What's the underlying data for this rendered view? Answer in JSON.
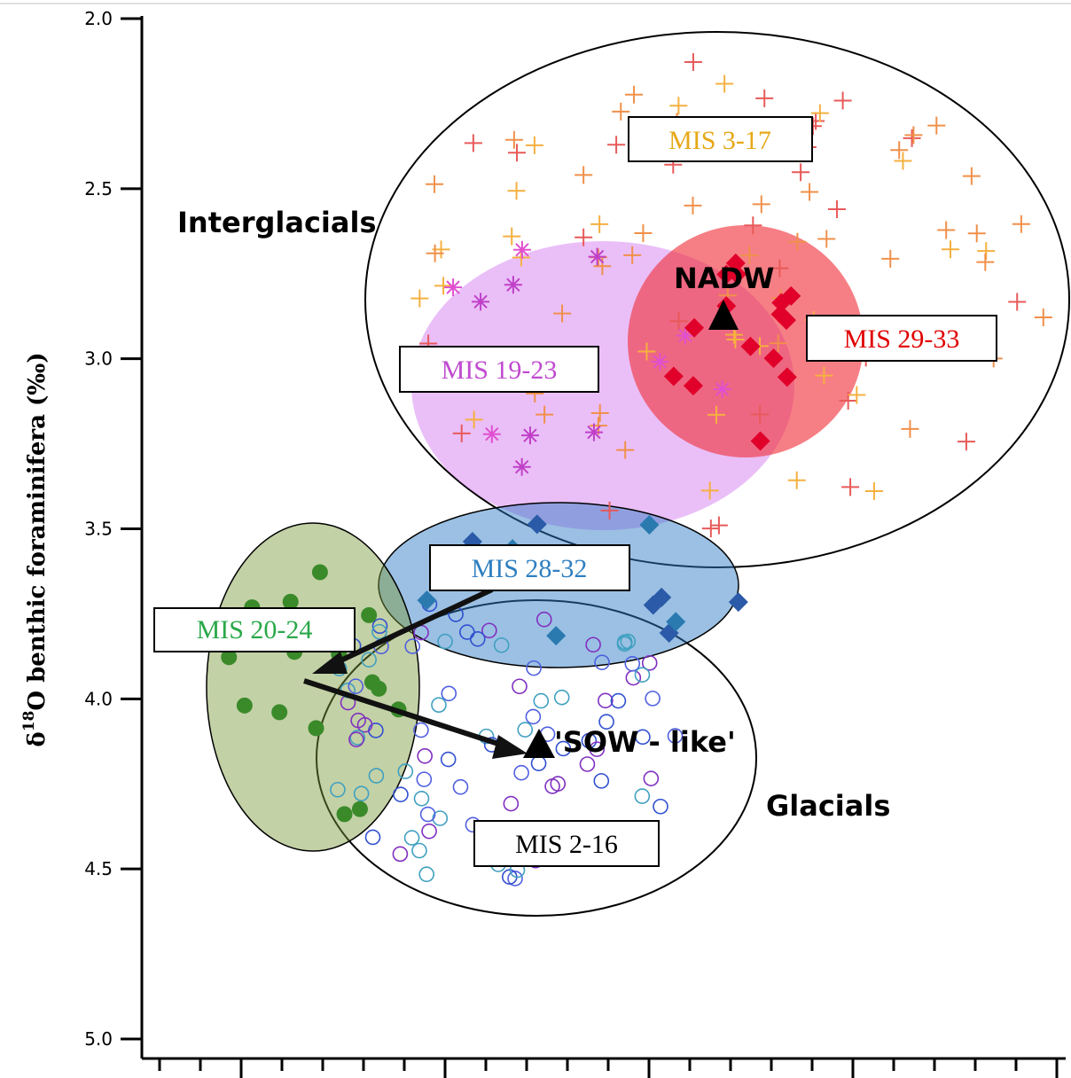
{
  "chart_data": {
    "type": "scatter",
    "ylabel_parts": [
      "δ",
      "18",
      "O benthic foraminifera (‰)"
    ],
    "ylim": [
      2.0,
      5.0
    ],
    "y_inverted": true,
    "y_ticks": [
      "2.0",
      "2.5",
      "3.0",
      "3.5",
      "4.0",
      "4.5",
      "5.0"
    ],
    "y_tick_values": [
      2.0,
      2.5,
      3.0,
      3.5,
      4.0,
      4.5,
      5.0
    ],
    "x_tick_labels_visible": false,
    "group_labels": {
      "interglacials": "Interglacials",
      "glacials": "Glacials"
    },
    "water_masses": [
      {
        "label": "NADW",
        "y": 2.88
      },
      {
        "label": "'SOW - like'",
        "y": 4.13
      }
    ],
    "clusters": [
      {
        "label": "MIS 3-17",
        "label_color": "#e6a817",
        "marker": "plus",
        "colors": [
          "#f0904a",
          "#f5b040",
          "#e85a5a"
        ]
      },
      {
        "label": "MIS 19-23",
        "label_color": "#c04ad0",
        "marker": "asterisk",
        "colors": [
          "#c040c8",
          "#e050d0"
        ]
      },
      {
        "label": "MIS 29-33",
        "label_color": "#e00000",
        "marker": "diamond-filled",
        "colors": [
          "#e0002a"
        ]
      },
      {
        "label": "MIS 28-32",
        "label_color": "#2f7fc0",
        "marker": "diamond-filled",
        "colors": [
          "#2a5aa8",
          "#2a7ab0"
        ]
      },
      {
        "label": "MIS 20-24",
        "label_color": "#2aa84a",
        "marker": "circle-filled",
        "colors": [
          "#3a8a2a"
        ]
      },
      {
        "label": "MIS 2-16",
        "label_color": "#000000",
        "marker": "circle-open",
        "colors": [
          "#3050d0",
          "#5060e0",
          "#8030c0",
          "#40a0c0"
        ]
      }
    ]
  }
}
